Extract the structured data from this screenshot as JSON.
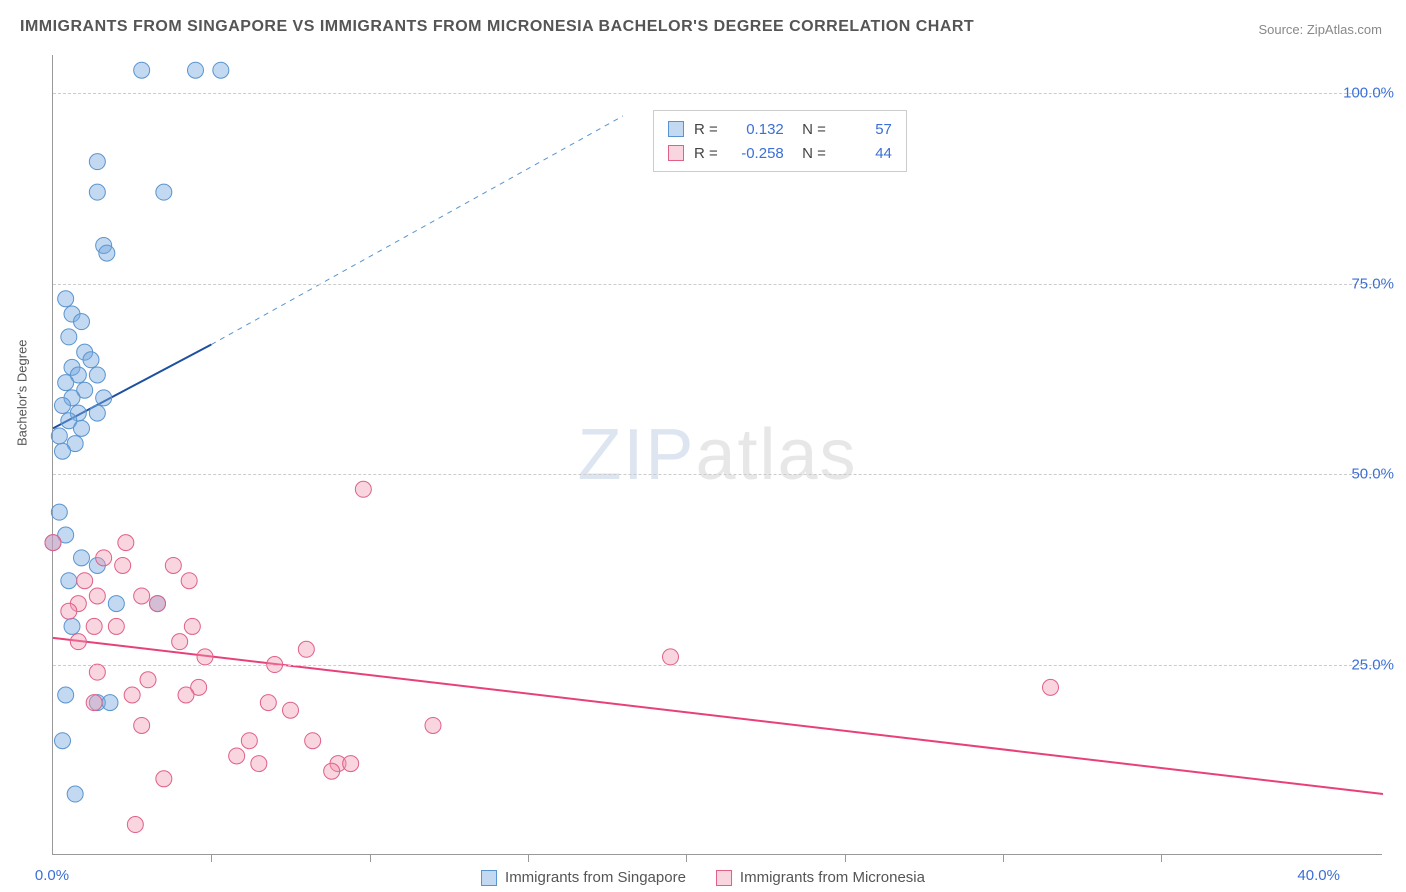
{
  "title": "IMMIGRANTS FROM SINGAPORE VS IMMIGRANTS FROM MICRONESIA BACHELOR'S DEGREE CORRELATION CHART",
  "source_label": "Source: ",
  "source_name": "ZipAtlas.com",
  "y_axis_label": "Bachelor's Degree",
  "watermark_zip": "ZIP",
  "watermark_atlas": "atlas",
  "chart": {
    "type": "scatter",
    "background_color": "#ffffff",
    "grid_color": "#cccccc",
    "axis_color": "#999999",
    "value_text_color": "#3b6fd6",
    "label_text_color": "#555555",
    "xlim": [
      0,
      42
    ],
    "ylim": [
      0,
      105
    ],
    "x_ticks": [
      0,
      40
    ],
    "x_tick_labels": [
      "0.0%",
      "40.0%"
    ],
    "x_minor_ticks": [
      5,
      10,
      15,
      20,
      25,
      30,
      35
    ],
    "y_ticks": [
      25,
      50,
      75,
      100
    ],
    "y_tick_labels": [
      "25.0%",
      "50.0%",
      "75.0%",
      "100.0%"
    ],
    "series": [
      {
        "name": "Immigrants from Singapore",
        "color_fill": "rgba(120,170,225,0.45)",
        "color_stroke": "#5a94cf",
        "marker_radius": 8,
        "trend_line_color": "#1e4fa0",
        "trend_line_width": 2,
        "trend_dash_color": "#5a94cf",
        "trend_line": {
          "x1": 0,
          "y1": 56,
          "x2": 5,
          "y2": 67
        },
        "trend_dash": {
          "x1": 5,
          "y1": 67,
          "x2": 18,
          "y2": 97
        },
        "r_value": "0.132",
        "n_value": "57",
        "points": [
          [
            2.8,
            103
          ],
          [
            4.5,
            103
          ],
          [
            5.3,
            103
          ],
          [
            1.4,
            91
          ],
          [
            1.4,
            87
          ],
          [
            3.5,
            87
          ],
          [
            1.6,
            80
          ],
          [
            1.7,
            79
          ],
          [
            0.4,
            73
          ],
          [
            0.6,
            71
          ],
          [
            0.9,
            70
          ],
          [
            0.5,
            68
          ],
          [
            1.0,
            66
          ],
          [
            1.2,
            65
          ],
          [
            0.6,
            64
          ],
          [
            0.8,
            63
          ],
          [
            1.4,
            63
          ],
          [
            0.4,
            62
          ],
          [
            1.0,
            61
          ],
          [
            0.6,
            60
          ],
          [
            1.6,
            60
          ],
          [
            0.3,
            59
          ],
          [
            0.8,
            58
          ],
          [
            1.4,
            58
          ],
          [
            0.5,
            57
          ],
          [
            0.9,
            56
          ],
          [
            0.2,
            55
          ],
          [
            0.7,
            54
          ],
          [
            0.3,
            53
          ],
          [
            0.2,
            45
          ],
          [
            0.4,
            42
          ],
          [
            0.0,
            41
          ],
          [
            0.9,
            39
          ],
          [
            1.4,
            38
          ],
          [
            0.5,
            36
          ],
          [
            2.0,
            33
          ],
          [
            3.3,
            33
          ],
          [
            0.6,
            30
          ],
          [
            0.4,
            21
          ],
          [
            1.4,
            20
          ],
          [
            1.8,
            20
          ],
          [
            0.3,
            15
          ],
          [
            0.7,
            8
          ]
        ]
      },
      {
        "name": "Immigrants from Micronesia",
        "color_fill": "rgba(240,150,175,0.40)",
        "color_stroke": "#e06088",
        "marker_radius": 8,
        "trend_line_color": "#e8407b",
        "trend_line_width": 2,
        "trend_line": {
          "x1": 0,
          "y1": 28.5,
          "x2": 42,
          "y2": 8
        },
        "r_value": "-0.258",
        "n_value": "44",
        "points": [
          [
            9.8,
            48
          ],
          [
            0.0,
            41
          ],
          [
            2.3,
            41
          ],
          [
            1.6,
            39
          ],
          [
            2.2,
            38
          ],
          [
            3.8,
            38
          ],
          [
            1.0,
            36
          ],
          [
            4.3,
            36
          ],
          [
            1.4,
            34
          ],
          [
            2.8,
            34
          ],
          [
            0.8,
            33
          ],
          [
            3.3,
            33
          ],
          [
            0.5,
            32
          ],
          [
            1.3,
            30
          ],
          [
            2.0,
            30
          ],
          [
            4.4,
            30
          ],
          [
            0.8,
            28
          ],
          [
            4.0,
            28
          ],
          [
            8.0,
            27
          ],
          [
            4.8,
            26
          ],
          [
            7.0,
            25
          ],
          [
            19.5,
            26
          ],
          [
            1.4,
            24
          ],
          [
            3.0,
            23
          ],
          [
            4.6,
            22
          ],
          [
            2.5,
            21
          ],
          [
            4.2,
            21
          ],
          [
            1.3,
            20
          ],
          [
            6.8,
            20
          ],
          [
            31.5,
            22
          ],
          [
            7.5,
            19
          ],
          [
            2.8,
            17
          ],
          [
            12.0,
            17
          ],
          [
            6.2,
            15
          ],
          [
            8.2,
            15
          ],
          [
            5.8,
            13
          ],
          [
            6.5,
            12
          ],
          [
            9.0,
            12
          ],
          [
            9.4,
            12
          ],
          [
            8.8,
            11
          ],
          [
            3.5,
            10
          ],
          [
            2.6,
            4
          ]
        ]
      }
    ],
    "legend_box": {
      "r_label": "R =",
      "n_label": "N ="
    },
    "bottom_legend": [
      "Immigrants from Singapore",
      "Immigrants from Micronesia"
    ]
  }
}
